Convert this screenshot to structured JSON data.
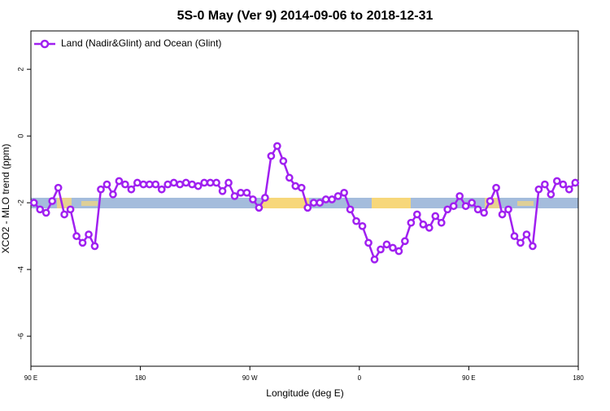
{
  "chart_data": {
    "type": "line",
    "title": "5S-0 May (Ver 9)   2014-09-06 to 2018-12-31",
    "x_label": "Longitude (deg E)",
    "y_label": "XCO2 - MLO trend (ppm)",
    "x": [
      92.5,
      97.5,
      102.5,
      107.5,
      112.5,
      117.5,
      122.5,
      127.5,
      132.5,
      137.5,
      142.5,
      147.5,
      152.5,
      157.5,
      162.5,
      167.5,
      172.5,
      177.5,
      182.5,
      187.5,
      192.5,
      197.5,
      202.5,
      207.5,
      212.5,
      217.5,
      222.5,
      227.5,
      232.5,
      237.5,
      242.5,
      247.5,
      252.5,
      257.5,
      262.5,
      267.5,
      272.5,
      277.5,
      282.5,
      287.5,
      292.5,
      297.5,
      302.5,
      307.5,
      312.5,
      317.5,
      322.5,
      327.5,
      332.5,
      337.5,
      342.5,
      347.5,
      352.5,
      357.5,
      362.5,
      367.5,
      372.5,
      377.5,
      382.5,
      387.5,
      392.5,
      397.5,
      402.5,
      407.5,
      412.5,
      417.5,
      422.5,
      427.5,
      432.5,
      437.5,
      442.5,
      447.5,
      452.5,
      457.5,
      462.5,
      467.5,
      472.5,
      477.5,
      482.5,
      487.5,
      492.5,
      497.5,
      502.5,
      507.5,
      512.5,
      517.5,
      522.5,
      527.5,
      532.5,
      537.5
    ],
    "series": [
      {
        "name": "Land (Nadir&Glint) and Ocean (Glint)",
        "color": "#a020f0",
        "values": [
          -2.0,
          -2.2,
          -2.3,
          -1.95,
          -1.55,
          -2.35,
          -2.2,
          -3.0,
          -3.2,
          -2.95,
          -3.3,
          -1.6,
          -1.45,
          -1.75,
          -1.35,
          -1.45,
          -1.6,
          -1.4,
          -1.45,
          -1.45,
          -1.45,
          -1.6,
          -1.45,
          -1.4,
          -1.45,
          -1.4,
          -1.45,
          -1.5,
          -1.4,
          -1.4,
          -1.4,
          -1.65,
          -1.4,
          -1.8,
          -1.7,
          -1.7,
          -1.9,
          -2.15,
          -1.85,
          -0.6,
          -0.3,
          -0.75,
          -1.25,
          -1.5,
          -1.55,
          -2.15,
          -2.0,
          -2.0,
          -1.9,
          -1.9,
          -1.8,
          -1.7,
          -2.2,
          -2.55,
          -2.7,
          -3.2,
          -3.7,
          -3.4,
          -3.25,
          -3.35,
          -3.45,
          -3.15,
          -2.6,
          -2.35,
          -2.65,
          -2.75,
          -2.4,
          -2.6,
          -2.2,
          -2.1,
          -1.8,
          -2.1,
          -2.0,
          -2.2,
          -2.3,
          -1.95,
          -1.55,
          -2.35,
          -2.2,
          -3.0,
          -3.2,
          -2.95,
          -3.3,
          -1.6,
          -1.45,
          -1.75,
          -1.35,
          -1.45,
          -1.6,
          -1.4
        ]
      }
    ],
    "xlim": [
      90,
      540
    ],
    "xticks": [
      {
        "value": 90,
        "label": "90 E"
      },
      {
        "value": 180,
        "label": "180"
      },
      {
        "value": 270,
        "label": "90 W"
      },
      {
        "value": 360,
        "label": "0"
      },
      {
        "value": 450,
        "label": "90 E"
      },
      {
        "value": 540,
        "label": "180"
      }
    ],
    "ylim": [
      -6.9,
      3.15
    ],
    "yticks": [
      2,
      0,
      -2,
      -4,
      -6
    ],
    "legend": "top-left"
  }
}
